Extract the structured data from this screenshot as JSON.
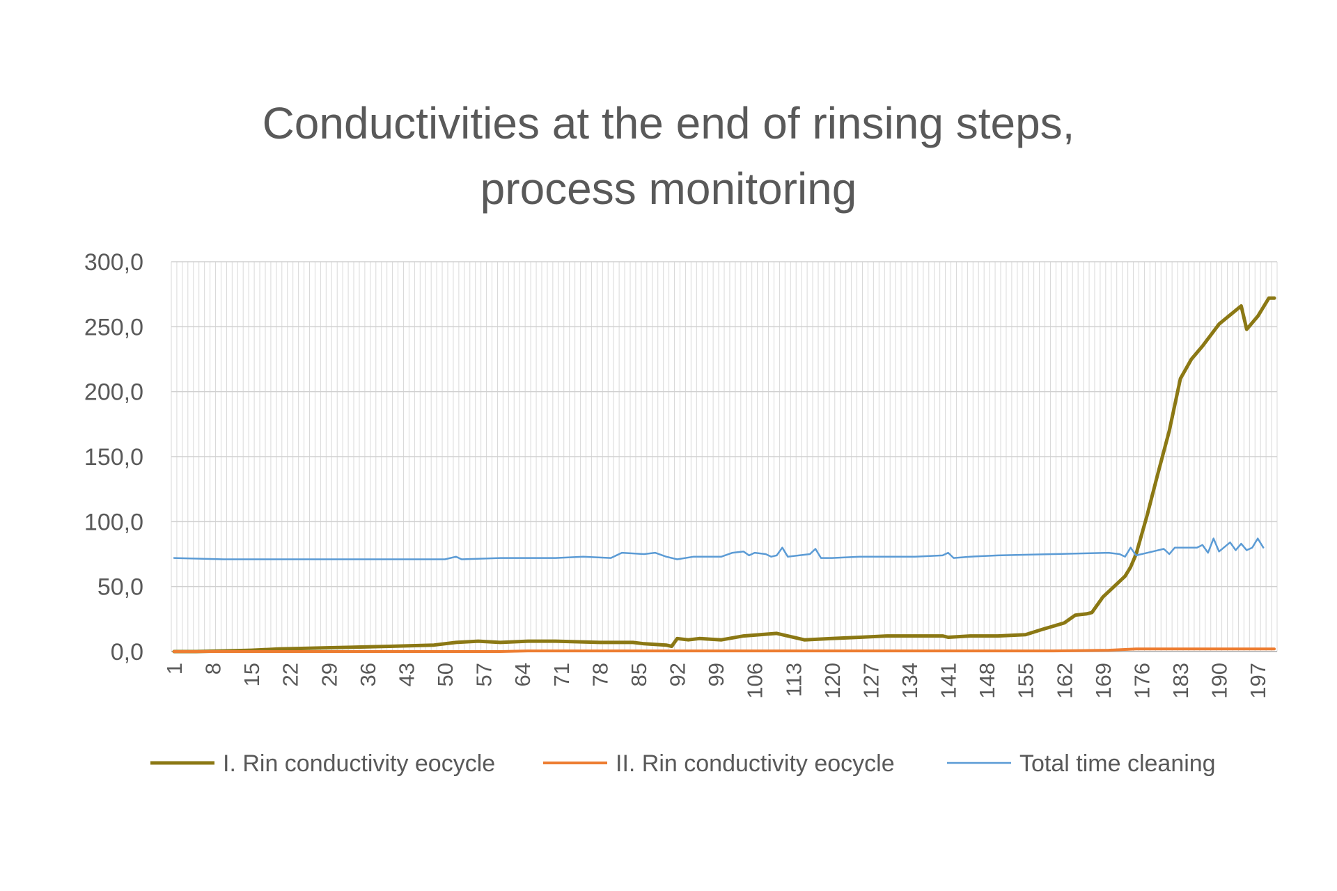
{
  "chart_data": {
    "type": "line",
    "title_lines": [
      "Conductivities at the end of rinsing steps,",
      "process monitoring"
    ],
    "xlabel": "",
    "ylabel": "",
    "ylim": [
      0,
      300
    ],
    "y_ticks": [
      "0,0",
      "50,0",
      "100,0",
      "150,0",
      "200,0",
      "250,0",
      "300,0"
    ],
    "x_range": [
      1,
      200
    ],
    "x_tick_labels": [
      "1",
      "8",
      "15",
      "22",
      "29",
      "36",
      "43",
      "50",
      "57",
      "64",
      "71",
      "78",
      "85",
      "92",
      "99",
      "106",
      "113",
      "120",
      "127",
      "134",
      "141",
      "148",
      "155",
      "162",
      "169",
      "176",
      "183",
      "190",
      "197"
    ],
    "grid": "vertical and horizontal gridlines",
    "legend_position": "bottom",
    "series": [
      {
        "name": "I. Rin conductivity eocycle",
        "color": "#8B7814",
        "points": [
          [
            1,
            0
          ],
          [
            5,
            0
          ],
          [
            10,
            0.5
          ],
          [
            15,
            1
          ],
          [
            20,
            2
          ],
          [
            30,
            3
          ],
          [
            40,
            4
          ],
          [
            48,
            5
          ],
          [
            52,
            7
          ],
          [
            56,
            8
          ],
          [
            60,
            7
          ],
          [
            65,
            8
          ],
          [
            70,
            8
          ],
          [
            78,
            7
          ],
          [
            84,
            7
          ],
          [
            86,
            6
          ],
          [
            90,
            5
          ],
          [
            91,
            4
          ],
          [
            92,
            10
          ],
          [
            94,
            9
          ],
          [
            96,
            10
          ],
          [
            100,
            9
          ],
          [
            104,
            12
          ],
          [
            110,
            14
          ],
          [
            115,
            9
          ],
          [
            120,
            10
          ],
          [
            125,
            11
          ],
          [
            130,
            12
          ],
          [
            135,
            12
          ],
          [
            140,
            12
          ],
          [
            141,
            11
          ],
          [
            145,
            12
          ],
          [
            150,
            12
          ],
          [
            155,
            13
          ],
          [
            158,
            17
          ],
          [
            162,
            22
          ],
          [
            164,
            28
          ],
          [
            166,
            29
          ],
          [
            167,
            30
          ],
          [
            169,
            42
          ],
          [
            171,
            50
          ],
          [
            173,
            58
          ],
          [
            174,
            65
          ],
          [
            175,
            75
          ],
          [
            177,
            105
          ],
          [
            179,
            138
          ],
          [
            181,
            170
          ],
          [
            183,
            210
          ],
          [
            185,
            225
          ],
          [
            187,
            235
          ],
          [
            190,
            252
          ],
          [
            194,
            266
          ],
          [
            195,
            248
          ],
          [
            197,
            258
          ],
          [
            199,
            272
          ],
          [
            200,
            272
          ]
        ]
      },
      {
        "name": "II. Rin conductivity eocycle",
        "color": "#ED7D31",
        "points": [
          [
            1,
            0
          ],
          [
            60,
            0
          ],
          [
            65,
            0.5
          ],
          [
            70,
            0.5
          ],
          [
            100,
            0.5
          ],
          [
            160,
            0.5
          ],
          [
            170,
            1
          ],
          [
            175,
            2
          ],
          [
            180,
            2
          ],
          [
            200,
            2
          ]
        ]
      },
      {
        "name": "Total time cleaning",
        "color": "#5B9BD5",
        "points": [
          [
            1,
            72
          ],
          [
            10,
            71
          ],
          [
            20,
            71
          ],
          [
            30,
            71
          ],
          [
            40,
            71
          ],
          [
            50,
            71
          ],
          [
            52,
            73
          ],
          [
            53,
            71
          ],
          [
            60,
            72
          ],
          [
            70,
            72
          ],
          [
            75,
            73
          ],
          [
            80,
            72
          ],
          [
            82,
            76
          ],
          [
            86,
            75
          ],
          [
            88,
            76
          ],
          [
            90,
            73
          ],
          [
            92,
            71
          ],
          [
            95,
            73
          ],
          [
            100,
            73
          ],
          [
            102,
            76
          ],
          [
            104,
            77
          ],
          [
            105,
            74
          ],
          [
            106,
            76
          ],
          [
            108,
            75
          ],
          [
            109,
            73
          ],
          [
            110,
            74
          ],
          [
            111,
            80
          ],
          [
            112,
            73
          ],
          [
            114,
            74
          ],
          [
            116,
            75
          ],
          [
            117,
            79
          ],
          [
            118,
            72
          ],
          [
            120,
            72
          ],
          [
            125,
            73
          ],
          [
            130,
            73
          ],
          [
            135,
            73
          ],
          [
            140,
            74
          ],
          [
            141,
            76
          ],
          [
            142,
            72
          ],
          [
            145,
            73
          ],
          [
            150,
            74
          ],
          [
            160,
            75
          ],
          [
            170,
            76
          ],
          [
            172,
            75
          ],
          [
            173,
            73
          ],
          [
            174,
            80
          ],
          [
            175,
            74
          ],
          [
            178,
            77
          ],
          [
            180,
            79
          ],
          [
            181,
            75
          ],
          [
            182,
            80
          ],
          [
            186,
            80
          ],
          [
            187,
            82
          ],
          [
            188,
            76
          ],
          [
            189,
            87
          ],
          [
            190,
            77
          ],
          [
            192,
            84
          ],
          [
            193,
            78
          ],
          [
            194,
            83
          ],
          [
            195,
            78
          ],
          [
            196,
            80
          ],
          [
            197,
            87
          ],
          [
            198,
            80
          ]
        ]
      }
    ]
  }
}
